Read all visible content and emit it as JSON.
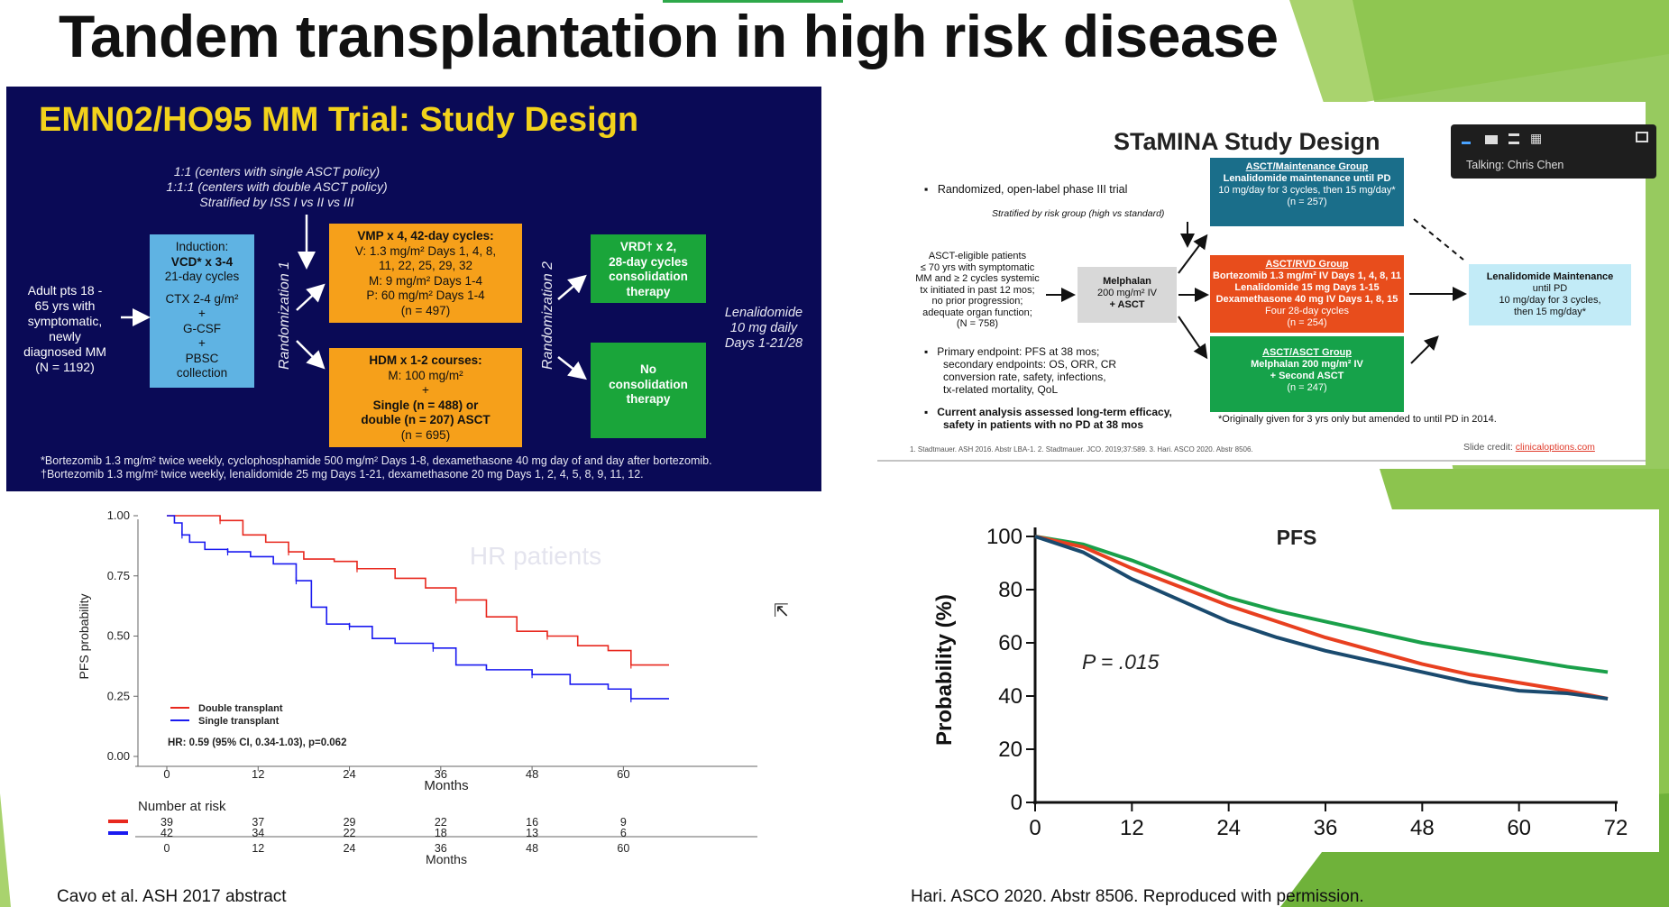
{
  "slide_title": "Tandem transplantation in high risk disease",
  "emn": {
    "title": "EMN02/HO95 MM Trial: Study Design",
    "rand_note": [
      "1:1 (centers with single ASCT policy)",
      "1:1:1 (centers with double ASCT policy)",
      "Stratified by ISS I vs II vs III"
    ],
    "population": [
      "Adult pts 18 -",
      "65 yrs with",
      "symptomatic,",
      "newly",
      "diagnosed MM",
      "(N = 1192)"
    ],
    "induction": [
      "Induction:",
      "VCD* x 3-4",
      "21-day cycles",
      "",
      "CTX 2-4 g/m²",
      "+",
      "G-CSF",
      "+",
      "PBSC",
      "collection"
    ],
    "rand1": "Randomization 1",
    "rand2": "Randomization 2",
    "vmp": [
      "VMP x 4, 42-day cycles:",
      "V: 1.3 mg/m² Days 1, 4, 8,",
      "11, 22, 25, 29, 32",
      "M: 9 mg/m² Days 1-4",
      "P: 60 mg/m² Days 1-4",
      "(n = 497)"
    ],
    "hdm": [
      "HDM x 1-2 courses:",
      "M: 100 mg/m²",
      "+",
      "Single (n = 488) or",
      "double (n = 207) ASCT",
      "(n = 695)"
    ],
    "vrd": [
      "VRD† x 2,",
      "28-day cycles",
      "consolidation",
      "therapy"
    ],
    "nocons": [
      "No",
      "consolidation",
      "therapy"
    ],
    "lenalidomide": [
      "Lenalidomide",
      "10 mg daily",
      "Days 1-21/28"
    ],
    "footnotes": [
      "*Bortezomib 1.3 mg/m² twice weekly, cyclophosphamide 500 mg/m² Days 1-8, dexamethasone 40 mg day of and day after bortezomib.",
      "†Bortezomib 1.3 mg/m² twice weekly, lenalidomide 25 mg Days 1-21, dexamethasone 20 mg Days 1, 2, 4, 5, 8, 9, 11, 12."
    ]
  },
  "stamina": {
    "title": "STaMINA Study Design",
    "bullet1": "Randomized, open-label phase III trial",
    "stratified": "Stratified by risk group (high vs standard)",
    "eligible": [
      "ASCT-eligible patients",
      "≤ 70 yrs with symptomatic",
      "MM and ≥ 2 cycles systemic",
      "tx initiated in past 12 mos;",
      "no prior progression;",
      "adequate organ function;",
      "(N = 758)"
    ],
    "melphalan": [
      "Melphalan",
      "200 mg/m² IV",
      "+ ASCT"
    ],
    "group1": [
      "ASCT/Maintenance Group",
      "Lenalidomide maintenance until PD",
      "10 mg/day for 3 cycles, then 15 mg/day*",
      "(n = 257)"
    ],
    "group2": [
      "ASCT/RVD Group",
      "Bortezomib 1.3 mg/m² IV Days 1, 4, 8, 11",
      "Lenalidomide 15 mg Days 1-15",
      "Dexamethasone 40 mg IV Days 1, 8, 15",
      "Four 28-day cycles",
      "(n = 254)"
    ],
    "group3": [
      "ASCT/ASCT Group",
      "Melphalan 200 mg/m² IV",
      "+ Second ASCT",
      "(n = 247)"
    ],
    "maint": [
      "Lenalidomide Maintenance",
      "until PD",
      "10 mg/day for 3 cycles,",
      "then 15 mg/day*"
    ],
    "bullet2": [
      "Primary endpoint: PFS at 38 mos;",
      "secondary endpoints: OS, ORR, CR",
      "conversion rate, safety, infections,",
      "tx-related mortality, QoL"
    ],
    "bullet3": [
      "Current analysis assessed long-term efficacy,",
      "safety in patients with no PD at 38 mos"
    ],
    "footnote": "*Originally given for 3 yrs only but amended to until PD in 2014.",
    "refs": "1. Stadtmauer. ASH 2016. Abstr LBA-1. 2. Stadtmauer. JCO. 2019;37:589. 3. Hari. ASCO 2020. Abstr 8506.",
    "credit_label": "Slide credit:",
    "credit_link": "clinicaloptions.com"
  },
  "zoom": {
    "talking": "Talking: Chris Chen"
  },
  "cite_left": "Cavo et al. ASH 2017 abstract",
  "cite_right": "Hari. ASCO 2020. Abstr 8506. Reproduced with permission.",
  "chart_data": [
    {
      "type": "line",
      "title": "HR patients",
      "xlabel": "Months",
      "ylabel": "PFS probability",
      "xlim": [
        0,
        66
      ],
      "ylim": [
        0,
        1
      ],
      "x_ticks": [
        "0",
        "12",
        "24",
        "36",
        "48",
        "60"
      ],
      "y_ticks": [
        "0.00",
        "0.25",
        "0.50",
        "0.75",
        "1.00"
      ],
      "series": [
        {
          "name": "Double transplant",
          "color": "#e8281e",
          "points": [
            [
              0,
              1.0
            ],
            [
              3,
              1.0
            ],
            [
              7,
              0.98
            ],
            [
              10,
              0.92
            ],
            [
              13,
              0.89
            ],
            [
              16,
              0.85
            ],
            [
              18,
              0.82
            ],
            [
              22,
              0.81
            ],
            [
              25,
              0.78
            ],
            [
              30,
              0.74
            ],
            [
              34,
              0.7
            ],
            [
              38,
              0.65
            ],
            [
              42,
              0.58
            ],
            [
              46,
              0.52
            ],
            [
              50,
              0.5
            ],
            [
              54,
              0.46
            ],
            [
              58,
              0.44
            ],
            [
              61,
              0.38
            ],
            [
              66,
              0.38
            ]
          ]
        },
        {
          "name": "Single transplant",
          "color": "#1a1af0",
          "points": [
            [
              0,
              1.0
            ],
            [
              1,
              0.97
            ],
            [
              2,
              0.92
            ],
            [
              3,
              0.89
            ],
            [
              5,
              0.86
            ],
            [
              8,
              0.85
            ],
            [
              11,
              0.83
            ],
            [
              14,
              0.8
            ],
            [
              17,
              0.73
            ],
            [
              19,
              0.62
            ],
            [
              21,
              0.55
            ],
            [
              24,
              0.54
            ],
            [
              27,
              0.49
            ],
            [
              30,
              0.47
            ],
            [
              35,
              0.45
            ],
            [
              38,
              0.38
            ],
            [
              42,
              0.36
            ],
            [
              48,
              0.34
            ],
            [
              53,
              0.3
            ],
            [
              58,
              0.28
            ],
            [
              61,
              0.24
            ],
            [
              66,
              0.24
            ]
          ]
        }
      ],
      "legend": "bottom-left",
      "annotation": "HR: 0.59 (95% CI, 0.34-1.03), p=0.062",
      "risk_table": {
        "label": "Number at risk",
        "times": [
          "0",
          "12",
          "24",
          "36",
          "48",
          "60"
        ],
        "double": [
          "39",
          "37",
          "29",
          "22",
          "16",
          "9"
        ],
        "single": [
          "42",
          "34",
          "22",
          "18",
          "13",
          "6"
        ],
        "xlabel": "Months"
      }
    },
    {
      "type": "line",
      "title": "PFS",
      "xlabel": "",
      "ylabel": "Probability (%)",
      "xlim": [
        0,
        72
      ],
      "ylim": [
        0,
        100
      ],
      "x_ticks": [
        "0",
        "12",
        "24",
        "36",
        "48",
        "60",
        "72"
      ],
      "y_ticks": [
        "0",
        "20",
        "40",
        "60",
        "80",
        "100"
      ],
      "annotation": "P = .015",
      "series": [
        {
          "color": "#1aa04a",
          "points": [
            [
              0,
              100
            ],
            [
              6,
              97
            ],
            [
              12,
              91
            ],
            [
              18,
              84
            ],
            [
              24,
              77
            ],
            [
              30,
              72
            ],
            [
              36,
              68
            ],
            [
              42,
              64
            ],
            [
              48,
              60
            ],
            [
              54,
              57
            ],
            [
              60,
              54
            ],
            [
              66,
              51
            ],
            [
              71,
              49
            ]
          ]
        },
        {
          "color": "#e84020",
          "points": [
            [
              0,
              100
            ],
            [
              6,
              96
            ],
            [
              12,
              88
            ],
            [
              18,
              81
            ],
            [
              24,
              74
            ],
            [
              30,
              68
            ],
            [
              36,
              62
            ],
            [
              42,
              57
            ],
            [
              48,
              52
            ],
            [
              54,
              48
            ],
            [
              60,
              45
            ],
            [
              66,
              42
            ],
            [
              71,
              39
            ]
          ]
        },
        {
          "color": "#1a4a6e",
          "points": [
            [
              0,
              100
            ],
            [
              6,
              94
            ],
            [
              12,
              84
            ],
            [
              18,
              76
            ],
            [
              24,
              68
            ],
            [
              30,
              62
            ],
            [
              36,
              57
            ],
            [
              42,
              53
            ],
            [
              48,
              49
            ],
            [
              54,
              45
            ],
            [
              60,
              42
            ],
            [
              66,
              41
            ],
            [
              71,
              39
            ]
          ]
        }
      ]
    }
  ]
}
